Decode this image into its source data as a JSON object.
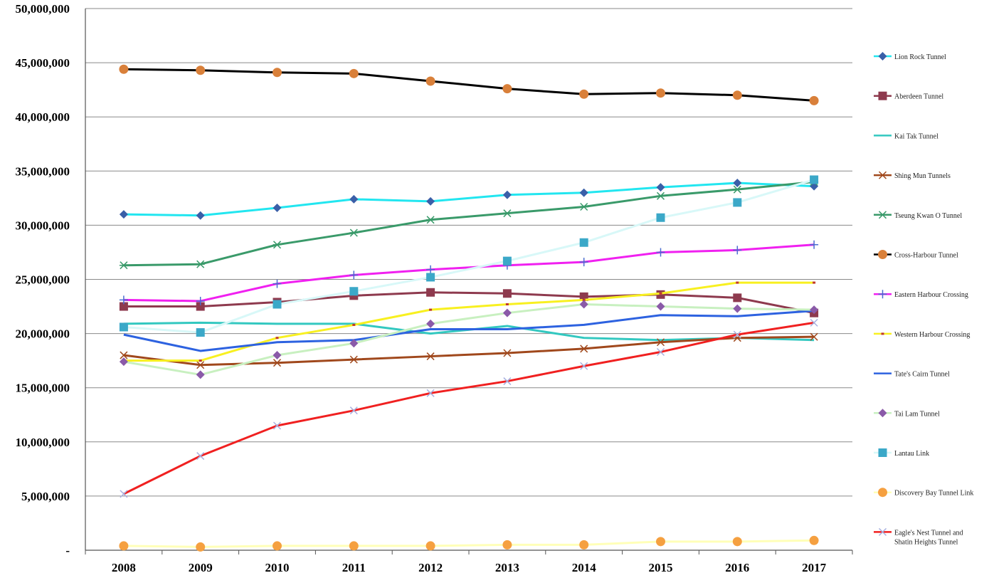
{
  "chart_data": {
    "type": "line",
    "title": "",
    "xlabel": "",
    "ylabel": "",
    "ylim": [
      0,
      50000000
    ],
    "grid": true,
    "legend_position": "right",
    "x": [
      "2008",
      "2009",
      "2010",
      "2011",
      "2012",
      "2013",
      "2014",
      "2015",
      "2016",
      "2017"
    ],
    "y_tick_labels": [
      "-",
      "5,000,000",
      "10,000,000",
      "15,000,000",
      "20,000,000",
      "25,000,000",
      "30,000,000",
      "35,000,000",
      "40,000,000",
      "45,000,000",
      "50,000,000"
    ],
    "series": [
      {
        "name": "Lion Rock Tunnel",
        "color": "#22E6F0",
        "marker": "diamond",
        "marker_color": "#3A5FA8",
        "values": [
          31000000,
          30900000,
          31600000,
          32400000,
          32200000,
          32800000,
          33000000,
          33500000,
          33900000,
          33600000
        ]
      },
      {
        "name": "Aberdeen Tunnel",
        "color": "#8E3A4E",
        "marker": "square",
        "marker_color": "#8E3A4E",
        "values": [
          22500000,
          22500000,
          22900000,
          23500000,
          23800000,
          23700000,
          23400000,
          23600000,
          23300000,
          21900000
        ]
      },
      {
        "name": "Kai Tak Tunnel",
        "color": "#33C8C0",
        "marker": "none",
        "marker_color": "#33C8C0",
        "values": [
          20900000,
          21000000,
          20900000,
          20900000,
          20000000,
          20700000,
          19600000,
          19400000,
          19600000,
          19400000
        ]
      },
      {
        "name": "Shing Mun Tunnels",
        "color": "#A0481C",
        "marker": "x",
        "marker_color": "#A0481C",
        "values": [
          18000000,
          17100000,
          17300000,
          17600000,
          17900000,
          18200000,
          18600000,
          19200000,
          19600000,
          19700000
        ]
      },
      {
        "name": "Tseung Kwan O Tunnel",
        "color": "#3A9A6A",
        "marker": "star",
        "marker_color": "#3A9A6A",
        "values": [
          26300000,
          26400000,
          28200000,
          29300000,
          30500000,
          31100000,
          31700000,
          32700000,
          33300000,
          34000000
        ]
      },
      {
        "name": "Cross-Harbour Tunnel",
        "color": "#000000",
        "marker": "circle",
        "marker_color": "#D9803A",
        "values": [
          44400000,
          44300000,
          44100000,
          44000000,
          43300000,
          42600000,
          42100000,
          42200000,
          42000000,
          41500000
        ]
      },
      {
        "name": "Eastern Harbour Crossing",
        "color": "#F020F0",
        "marker": "plus",
        "marker_color": "#4A6CD0",
        "values": [
          23100000,
          23000000,
          24600000,
          25400000,
          25900000,
          26300000,
          26600000,
          27500000,
          27700000,
          28200000
        ]
      },
      {
        "name": "Western Harbour Crossing",
        "color": "#F8F020",
        "marker": "dash",
        "marker_color": "#C0392B",
        "values": [
          17500000,
          17500000,
          19600000,
          20800000,
          22200000,
          22700000,
          23100000,
          23700000,
          24700000,
          24700000
        ]
      },
      {
        "name": "Tate's Cairn Tunnel",
        "color": "#2D62E0",
        "marker": "none",
        "marker_color": "#2D62E0",
        "values": [
          19900000,
          18400000,
          19200000,
          19400000,
          20400000,
          20400000,
          20800000,
          21700000,
          21600000,
          22100000
        ]
      },
      {
        "name": "Tai Lam Tunnel",
        "color": "#C8F0C0",
        "marker": "diamond",
        "marker_color": "#8A5AA8",
        "values": [
          17400000,
          16200000,
          18000000,
          19100000,
          20900000,
          21900000,
          22700000,
          22500000,
          22300000,
          22200000
        ]
      },
      {
        "name": "Lantau Link",
        "color": "#D8F8F8",
        "marker": "square",
        "marker_color": "#3BA8C8",
        "values": [
          20600000,
          20100000,
          22700000,
          23900000,
          25200000,
          26700000,
          28400000,
          30700000,
          32100000,
          34200000
        ]
      },
      {
        "name": "Discovery Bay Tunnel Link",
        "color": "#FFFFB8",
        "marker": "circle",
        "marker_color": "#F5A040",
        "values": [
          400000,
          300000,
          400000,
          400000,
          400000,
          500000,
          500000,
          800000,
          800000,
          900000
        ]
      },
      {
        "name": "Eagle's Nest Tunnel and Shatin Heights Tunnel",
        "color": "#F02020",
        "marker": "x",
        "marker_color": "#A8B0E0",
        "values": [
          5200000,
          8700000,
          11500000,
          12900000,
          14500000,
          15600000,
          17000000,
          18300000,
          19900000,
          21000000
        ]
      }
    ]
  }
}
